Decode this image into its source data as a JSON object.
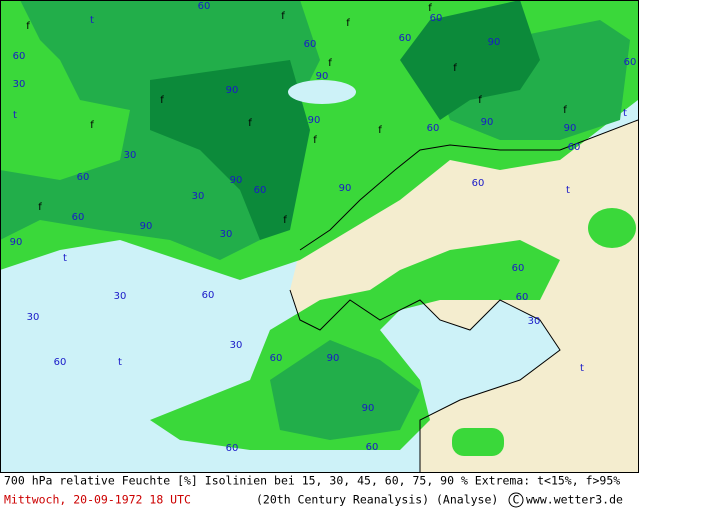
{
  "caption": {
    "line1": "700 hPa relative Feuchte [%] Isolinien bei 15, 30, 45, 60, 75, 90 %  Extrema: t<15%, f>95%",
    "date": "Mittwoch, 20-09-1972  18 UTC",
    "source": "(20th Century Reanalysis)  (Analyse)",
    "copyright": "C",
    "credit": "www.wetter3.de"
  },
  "map_labels": [
    "f",
    "f",
    "f",
    "f",
    "f",
    "f",
    "f",
    "f",
    "f",
    "f",
    "f",
    "f",
    "f",
    "f",
    "f",
    "t",
    "t",
    "t",
    "t",
    "t",
    "t",
    "t",
    "90",
    "90",
    "90",
    "90",
    "90",
    "90",
    "90",
    "90",
    "90",
    "90",
    "90",
    "90",
    "60",
    "60",
    "60",
    "60",
    "60",
    "60",
    "60",
    "60",
    "60",
    "60",
    "60",
    "60",
    "60",
    "60",
    "60",
    "60",
    "60",
    "60",
    "60",
    "30",
    "30",
    "30",
    "30",
    "30",
    "30",
    "30",
    "30"
  ]
}
